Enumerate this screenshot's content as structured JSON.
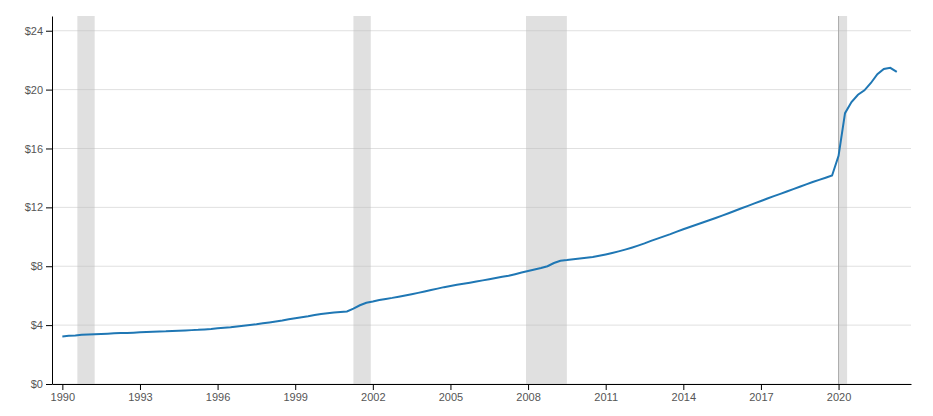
{
  "chart_data": {
    "type": "line",
    "grid": true,
    "xlim": [
      1989.6,
      2022.8
    ],
    "xticks": [
      1990,
      1993,
      1996,
      1999,
      2002,
      2005,
      2008,
      2011,
      2014,
      2017,
      2020
    ],
    "ylim": [
      0,
      25
    ],
    "yticks": [
      {
        "value": 0,
        "label": "$0"
      },
      {
        "value": 4,
        "label": "$4"
      },
      {
        "value": 8,
        "label": "$8"
      },
      {
        "value": 12,
        "label": "$12"
      },
      {
        "value": 16,
        "label": "$16"
      },
      {
        "value": 20,
        "label": "$20"
      },
      {
        "value": 24,
        "label": "$24"
      }
    ],
    "bands": [
      [
        1990.58,
        1991.25
      ],
      [
        2001.25,
        2001.92
      ],
      [
        2007.92,
        2009.5
      ],
      [
        2020.0,
        2020.33
      ]
    ],
    "vline": 2020.0,
    "x": [
      1990.0,
      1990.25,
      1990.5,
      1990.75,
      1991.0,
      1991.25,
      1991.5,
      1991.75,
      1992.0,
      1992.25,
      1992.5,
      1992.75,
      1993.0,
      1993.25,
      1993.5,
      1993.75,
      1994.0,
      1994.25,
      1994.5,
      1994.75,
      1995.0,
      1995.25,
      1995.5,
      1995.75,
      1996.0,
      1996.25,
      1996.5,
      1996.75,
      1997.0,
      1997.25,
      1997.5,
      1997.75,
      1998.0,
      1998.25,
      1998.5,
      1998.75,
      1999.0,
      1999.25,
      1999.5,
      1999.75,
      2000.0,
      2000.25,
      2000.5,
      2000.75,
      2001.0,
      2001.25,
      2001.5,
      2001.75,
      2002.0,
      2002.25,
      2002.5,
      2002.75,
      2003.0,
      2003.25,
      2003.5,
      2003.75,
      2004.0,
      2004.25,
      2004.5,
      2004.75,
      2005.0,
      2005.25,
      2005.5,
      2005.75,
      2006.0,
      2006.25,
      2006.5,
      2006.75,
      2007.0,
      2007.25,
      2007.5,
      2007.75,
      2008.0,
      2008.25,
      2008.5,
      2008.75,
      2009.0,
      2009.25,
      2009.5,
      2009.75,
      2010.0,
      2010.25,
      2010.5,
      2010.75,
      2011.0,
      2011.25,
      2011.5,
      2011.75,
      2012.0,
      2012.25,
      2012.5,
      2012.75,
      2013.0,
      2013.25,
      2013.5,
      2013.75,
      2014.0,
      2014.25,
      2014.5,
      2014.75,
      2015.0,
      2015.25,
      2015.5,
      2015.75,
      2016.0,
      2016.25,
      2016.5,
      2016.75,
      2017.0,
      2017.25,
      2017.5,
      2017.75,
      2018.0,
      2018.25,
      2018.5,
      2018.75,
      2019.0,
      2019.25,
      2019.5,
      2019.75,
      2020.0,
      2020.25,
      2020.5,
      2020.75,
      2021.0,
      2021.25,
      2021.5,
      2021.75,
      2022.0,
      2022.25
    ],
    "values": [
      3.23,
      3.27,
      3.3,
      3.34,
      3.36,
      3.38,
      3.4,
      3.42,
      3.44,
      3.46,
      3.47,
      3.49,
      3.51,
      3.53,
      3.55,
      3.57,
      3.58,
      3.6,
      3.62,
      3.64,
      3.66,
      3.68,
      3.71,
      3.74,
      3.78,
      3.82,
      3.86,
      3.91,
      3.96,
      4.01,
      4.06,
      4.12,
      4.18,
      4.25,
      4.32,
      4.4,
      4.47,
      4.53,
      4.6,
      4.68,
      4.75,
      4.8,
      4.85,
      4.89,
      4.93,
      5.12,
      5.35,
      5.52,
      5.6,
      5.7,
      5.78,
      5.85,
      5.93,
      6.01,
      6.1,
      6.19,
      6.28,
      6.38,
      6.48,
      6.58,
      6.66,
      6.74,
      6.81,
      6.88,
      6.96,
      7.04,
      7.12,
      7.2,
      7.28,
      7.36,
      7.46,
      7.57,
      7.68,
      7.78,
      7.88,
      8.0,
      8.22,
      8.37,
      8.42,
      8.48,
      8.53,
      8.58,
      8.63,
      8.71,
      8.8,
      8.9,
      9.01,
      9.13,
      9.26,
      9.4,
      9.55,
      9.72,
      9.88,
      10.03,
      10.18,
      10.35,
      10.51,
      10.67,
      10.82,
      10.97,
      11.12,
      11.28,
      11.44,
      11.6,
      11.77,
      11.94,
      12.1,
      12.27,
      12.43,
      12.6,
      12.76,
      12.92,
      13.08,
      13.24,
      13.4,
      13.56,
      13.72,
      13.87,
      14.01,
      14.16,
      15.5,
      18.4,
      19.15,
      19.65,
      19.95,
      20.45,
      21.05,
      21.4,
      21.48,
      21.2
    ]
  }
}
